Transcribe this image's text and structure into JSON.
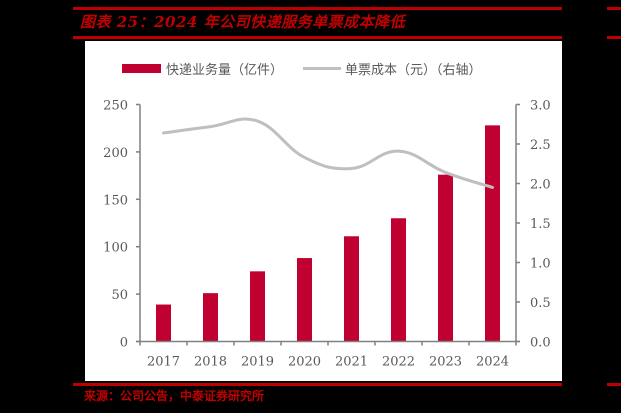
{
  "header": {
    "title": "图表 25：2024 年公司快递服务单票成本降低"
  },
  "footer": {
    "source": "来源：公司公告，中泰证券研究所"
  },
  "colors": {
    "brand_red": "#c00000",
    "bar": "#c00030",
    "line": "#bfbfbf",
    "axis": "#808080",
    "tick_text": "#595959"
  },
  "legend": {
    "bar_label": "快递业务量（亿件）",
    "line_label": "单票成本（元）（右轴）"
  },
  "chart_data": {
    "type": "bar",
    "title": "2024 年公司快递服务单票成本降低",
    "categories": [
      "2017",
      "2018",
      "2019",
      "2020",
      "2021",
      "2022",
      "2023",
      "2024"
    ],
    "series": [
      {
        "name": "快递业务量（亿件）",
        "type": "bar",
        "axis": "left",
        "values": [
          39,
          51,
          74,
          88,
          111,
          130,
          176,
          228
        ]
      },
      {
        "name": "单票成本（元）",
        "type": "line",
        "axis": "right",
        "values": [
          2.64,
          2.72,
          2.79,
          2.33,
          2.19,
          2.41,
          2.14,
          1.95
        ]
      }
    ],
    "xlabel": "",
    "ylabel": "",
    "ylabel_right": "",
    "ylim": [
      0,
      250
    ],
    "ylim_right": [
      0,
      3.0
    ],
    "yticks": [
      "0",
      "50",
      "100",
      "150",
      "200",
      "250"
    ],
    "yticks_right": [
      "0.0",
      "0.5",
      "1.0",
      "1.5",
      "2.0",
      "2.5",
      "3.0"
    ],
    "grid": false,
    "legend_position": "top"
  }
}
